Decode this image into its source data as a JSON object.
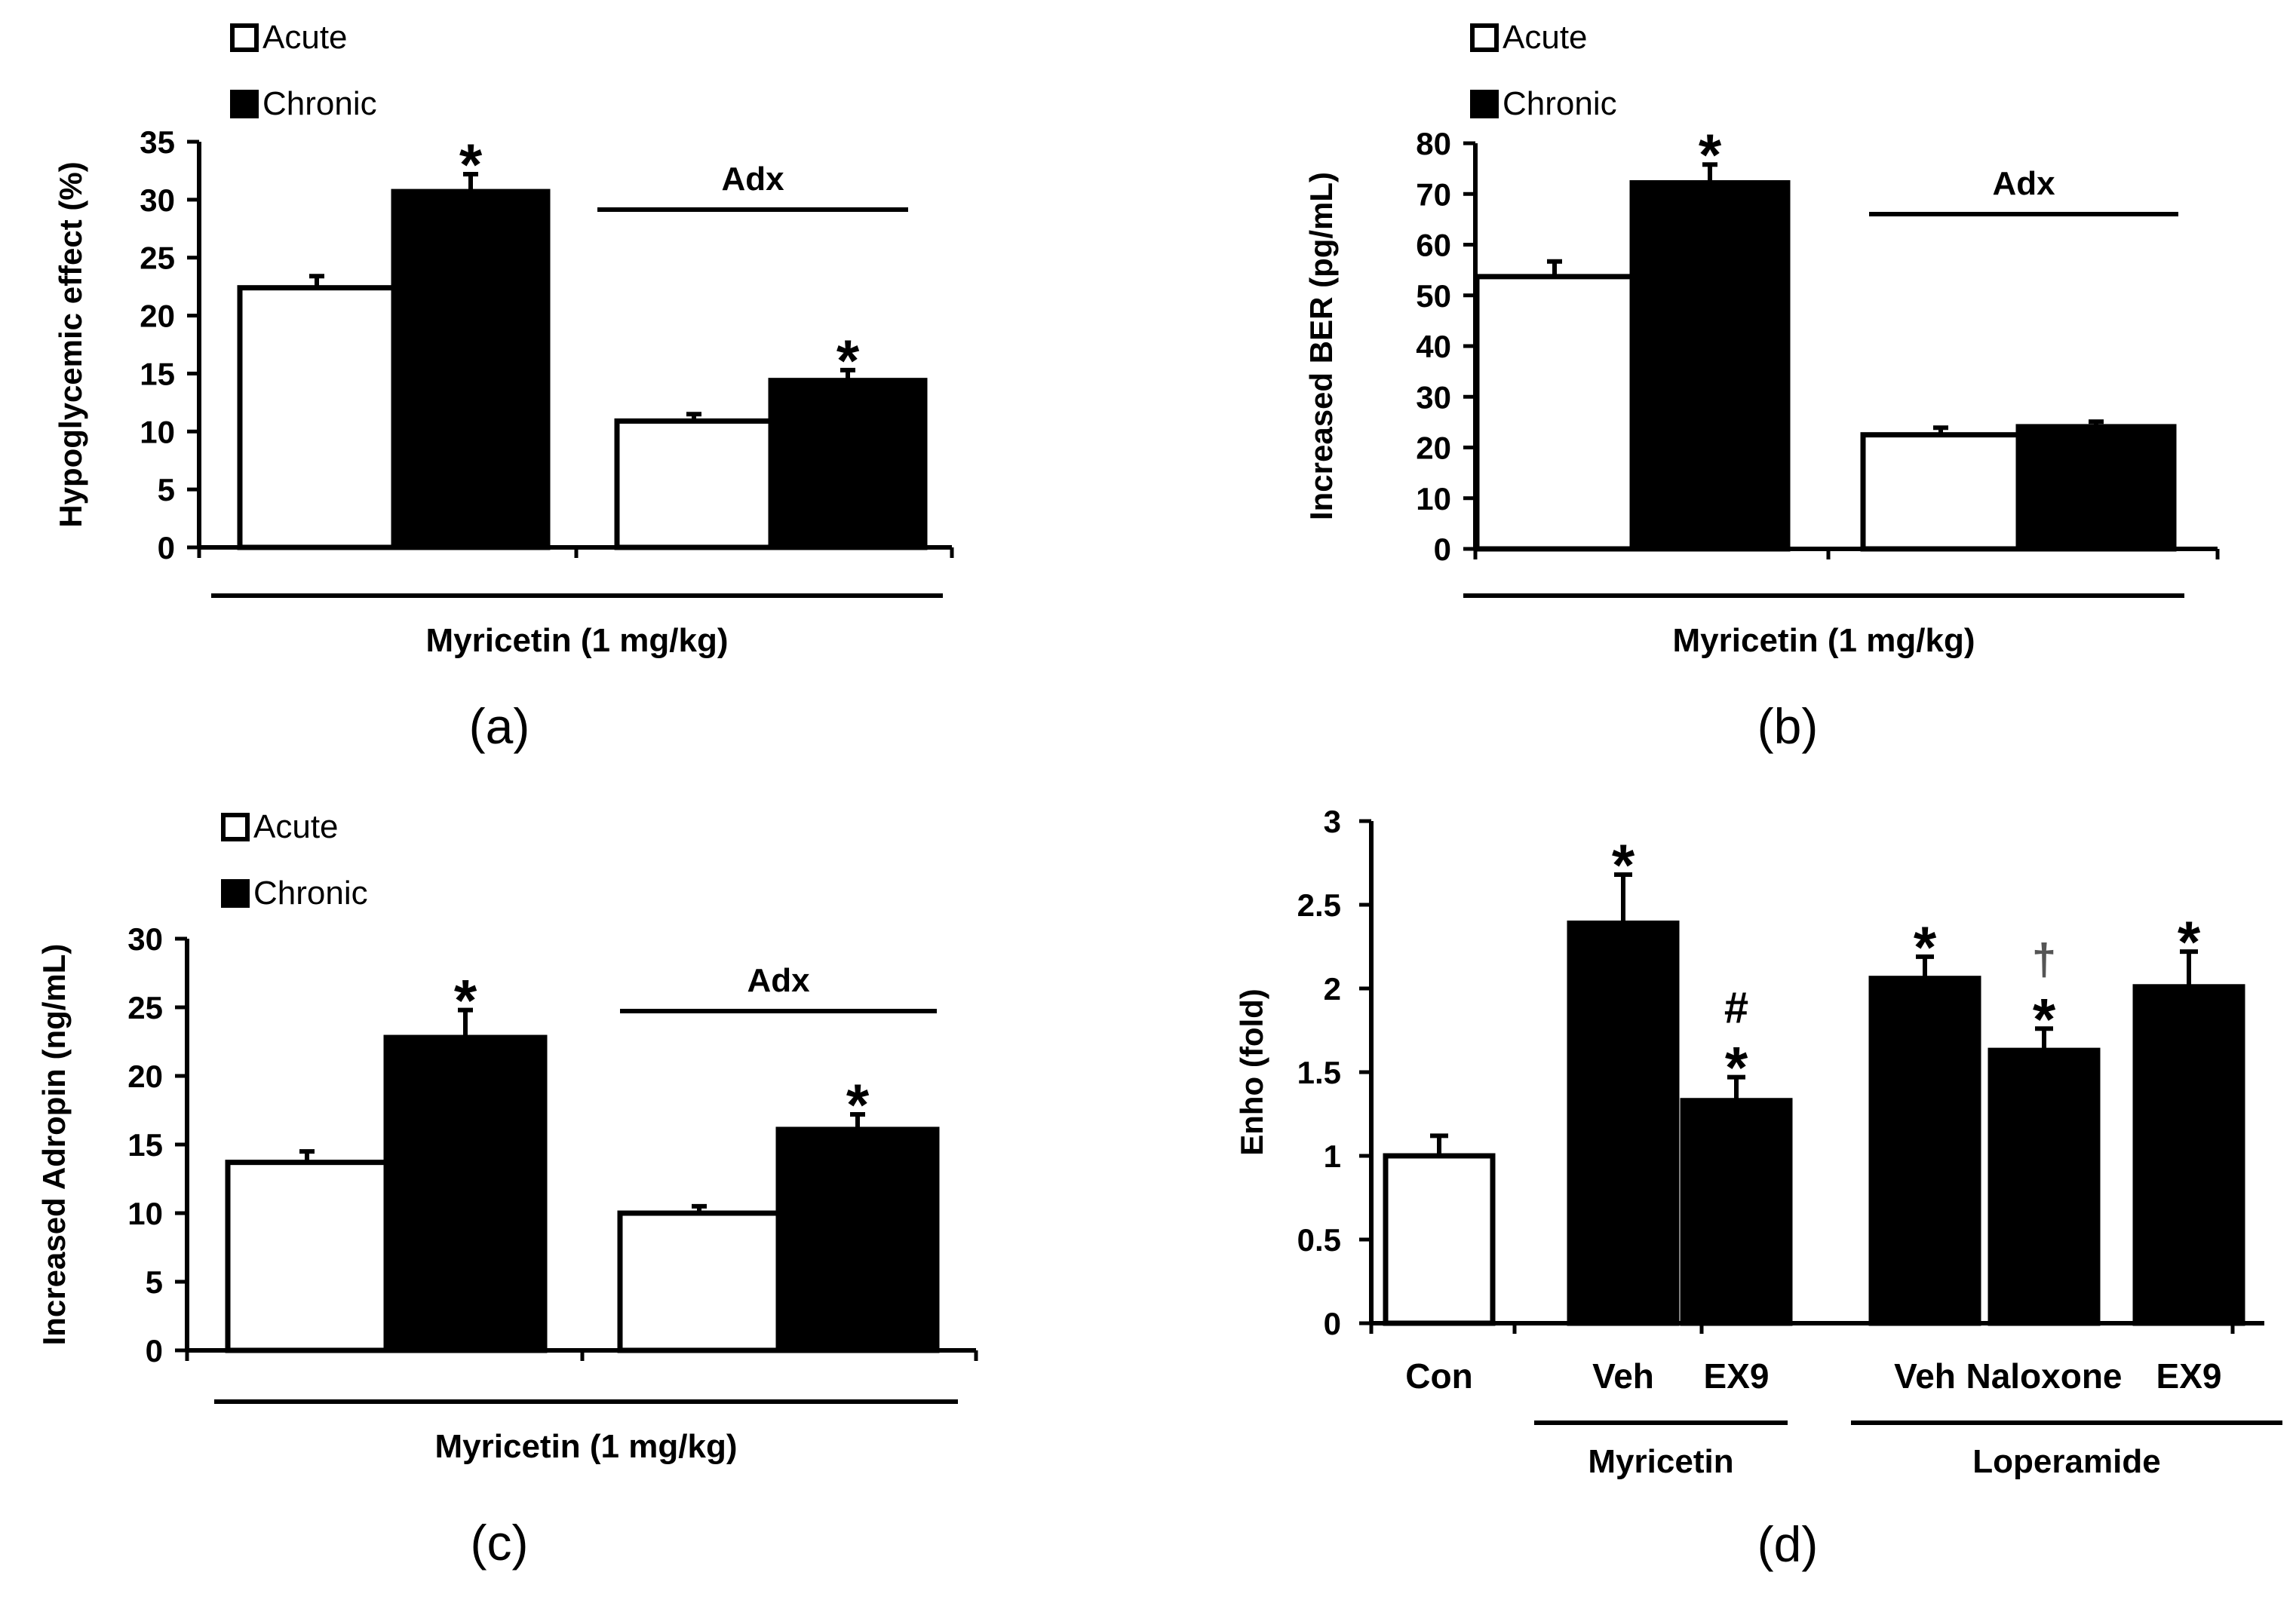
{
  "chart_data": [
    {
      "panel": "(a)",
      "type": "bar",
      "ylabel": "Hypoglycemic effect (%)",
      "xlabel": "Myricetin (1 mg/kg)",
      "ylim": [
        0,
        35
      ],
      "yticks": [
        "0",
        "5",
        "10",
        "15",
        "20",
        "25",
        "30",
        "35"
      ],
      "bracket_label": "Adx",
      "legend": [
        "Acute",
        "Chronic"
      ],
      "series": [
        {
          "name": "Acute",
          "color": "#ffffff",
          "values": [
            22.4,
            10.9
          ],
          "errors": [
            1.0,
            0.6
          ]
        },
        {
          "name": "Chronic",
          "color": "#000000",
          "values": [
            30.7,
            14.4
          ],
          "errors": [
            1.5,
            0.9
          ]
        }
      ],
      "significance": [
        {
          "series": 1,
          "group": 0,
          "mark": "*"
        },
        {
          "series": 1,
          "group": 1,
          "mark": "*"
        }
      ]
    },
    {
      "panel": "(b)",
      "type": "bar",
      "ylabel": "Increased BER (pg/mL)",
      "xlabel": "Myricetin (1 mg/kg)",
      "ylim": [
        0,
        80
      ],
      "yticks": [
        "0",
        "10",
        "20",
        "30",
        "40",
        "50",
        "60",
        "70",
        "80"
      ],
      "bracket_label": "Adx",
      "legend": [
        "Acute",
        "Chronic"
      ],
      "series": [
        {
          "name": "Acute",
          "color": "#ffffff",
          "values": [
            53.7,
            22.5
          ],
          "errors": [
            3.0,
            1.4
          ]
        },
        {
          "name": "Chronic",
          "color": "#000000",
          "values": [
            72.2,
            24.1
          ],
          "errors": [
            3.6,
            1.0
          ]
        }
      ],
      "significance": [
        {
          "series": 1,
          "group": 0,
          "mark": "*"
        }
      ]
    },
    {
      "panel": "(c)",
      "type": "bar",
      "ylabel": "Increased Adropin (ng/mL)",
      "xlabel": "Myricetin (1 mg/kg)",
      "ylim": [
        0,
        30
      ],
      "yticks": [
        "0",
        "5",
        "10",
        "15",
        "20",
        "25",
        "30"
      ],
      "bracket_label": "Adx",
      "legend": [
        "Acute",
        "Chronic"
      ],
      "series": [
        {
          "name": "Acute",
          "color": "#ffffff",
          "values": [
            13.7,
            10.0
          ],
          "errors": [
            0.8,
            0.5
          ]
        },
        {
          "name": "Chronic",
          "color": "#000000",
          "values": [
            22.8,
            16.1
          ],
          "errors": [
            2.0,
            1.1
          ]
        }
      ],
      "significance": [
        {
          "series": 1,
          "group": 0,
          "mark": "*"
        },
        {
          "series": 1,
          "group": 1,
          "mark": "*"
        }
      ]
    },
    {
      "panel": "(d)",
      "type": "bar",
      "ylabel": "Enho (fold)",
      "ylim": [
        0,
        3
      ],
      "yticks": [
        "0",
        "0.5",
        "1",
        "1.5",
        "2",
        "2.5",
        "3"
      ],
      "categories": [
        "Con",
        "Veh",
        "EX9",
        "Veh",
        "Naloxone",
        "EX9"
      ],
      "values": [
        1.0,
        2.39,
        1.33,
        2.06,
        1.63,
        2.01
      ],
      "errors": [
        0.12,
        0.29,
        0.14,
        0.13,
        0.13,
        0.21
      ],
      "fills": [
        "#ffffff",
        "#000000",
        "#000000",
        "#000000",
        "#000000",
        "#000000"
      ],
      "groups": [
        {
          "label": "Myricetin",
          "from": 1,
          "to": 2
        },
        {
          "label": "Loperamide",
          "from": 3,
          "to": 5
        }
      ],
      "marks": [
        {
          "bar": 1,
          "text": [
            "*"
          ]
        },
        {
          "bar": 2,
          "text": [
            "*",
            "#"
          ]
        },
        {
          "bar": 3,
          "text": [
            "*"
          ]
        },
        {
          "bar": 4,
          "text": [
            "*",
            "†"
          ]
        },
        {
          "bar": 5,
          "text": [
            "*"
          ]
        }
      ]
    }
  ]
}
